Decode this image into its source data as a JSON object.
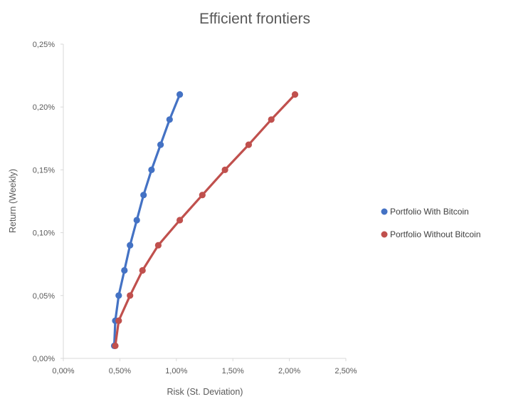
{
  "chart_data": {
    "type": "scatter",
    "title": "Efficient frontiers",
    "xlabel": "Risk (St. Deviation)",
    "ylabel": "Return (Weekly)",
    "xlim": [
      0.0,
      0.025
    ],
    "ylim": [
      0.0,
      0.0025
    ],
    "x_ticks": [
      "0,00%",
      "0,50%",
      "1,00%",
      "1,50%",
      "2,00%",
      "2,50%"
    ],
    "y_ticks": [
      "0,00%",
      "0,05%",
      "0,10%",
      "0,15%",
      "0,20%",
      "0,25%"
    ],
    "x_tick_values": [
      0.0,
      0.005,
      0.01,
      0.015,
      0.02,
      0.025
    ],
    "y_tick_values": [
      0.0,
      0.0005,
      0.001,
      0.0015,
      0.002,
      0.0025
    ],
    "grid": false,
    "legend_position": "right",
    "connected": true,
    "series": [
      {
        "name": "Portfolio With Bitcoin",
        "color": "#4472C4",
        "x": [
          0.0045,
          0.0046,
          0.0049,
          0.0054,
          0.0059,
          0.0065,
          0.0071,
          0.0078,
          0.0086,
          0.0094,
          0.0103
        ],
        "y": [
          0.0001,
          0.0003,
          0.0005,
          0.0007,
          0.0009,
          0.0011,
          0.0013,
          0.0015,
          0.0017,
          0.0019,
          0.0021
        ]
      },
      {
        "name": "Portfolio Without Bitcoin",
        "color": "#C0504D",
        "x": [
          0.0046,
          0.0049,
          0.0059,
          0.007,
          0.0084,
          0.0103,
          0.0123,
          0.0143,
          0.0164,
          0.0184,
          0.0205
        ],
        "y": [
          0.0001,
          0.0003,
          0.0005,
          0.0007,
          0.0009,
          0.0011,
          0.0013,
          0.0015,
          0.0017,
          0.0019,
          0.0021
        ]
      }
    ]
  }
}
